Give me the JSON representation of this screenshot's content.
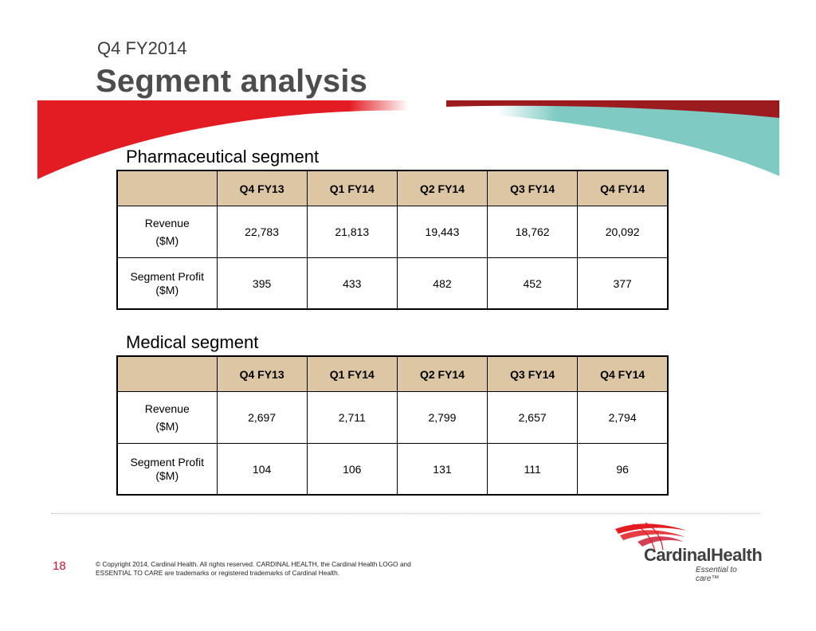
{
  "header": {
    "subtitle": "Q4 FY2014",
    "title": "Segment analysis"
  },
  "colors": {
    "swoosh_red": "#e31b23",
    "swoosh_teal": "#7fcbc4",
    "table_header_bg": "#dcc6a3",
    "page_number": "#c8102e"
  },
  "pharma": {
    "title": "Pharmaceutical segment",
    "columns": [
      "Q4 FY13",
      "Q1 FY14",
      "Q2 FY14",
      "Q3 FY14",
      "Q4 FY14"
    ],
    "revenue_label_1": "Revenue",
    "revenue_label_2": "($M)",
    "revenue": [
      "22,783",
      "21,813",
      "19,443",
      "18,762",
      "20,092"
    ],
    "profit_label_1": "Segment Profit",
    "profit_label_2": "($M)",
    "profit": [
      "395",
      "433",
      "482",
      "452",
      "377"
    ]
  },
  "medical": {
    "title": "Medical segment",
    "columns": [
      "Q4 FY13",
      "Q1 FY14",
      "Q2 FY14",
      "Q3 FY14",
      "Q4 FY14"
    ],
    "revenue_label_1": "Revenue",
    "revenue_label_2": "($M)",
    "revenue": [
      "2,697",
      "2,711",
      "2,799",
      "2,657",
      "2,794"
    ],
    "profit_label_1": "Segment Profit",
    "profit_label_2": "($M)",
    "profit": [
      "104",
      "106",
      "131",
      "111",
      "96"
    ]
  },
  "footer": {
    "page_number": "18",
    "copyright_line1": "© Copyright 2014, Cardinal Health. All rights reserved. CARDINAL HEALTH, the Cardinal Health LOGO and",
    "copyright_line2": "ESSENTIAL TO CARE are trademarks or registered trademarks of Cardinal Health.",
    "logo_icon": "cardinal-health-logo-icon",
    "logo_text": "CardinalHealth",
    "logo_tagline": "Essential to care™"
  }
}
